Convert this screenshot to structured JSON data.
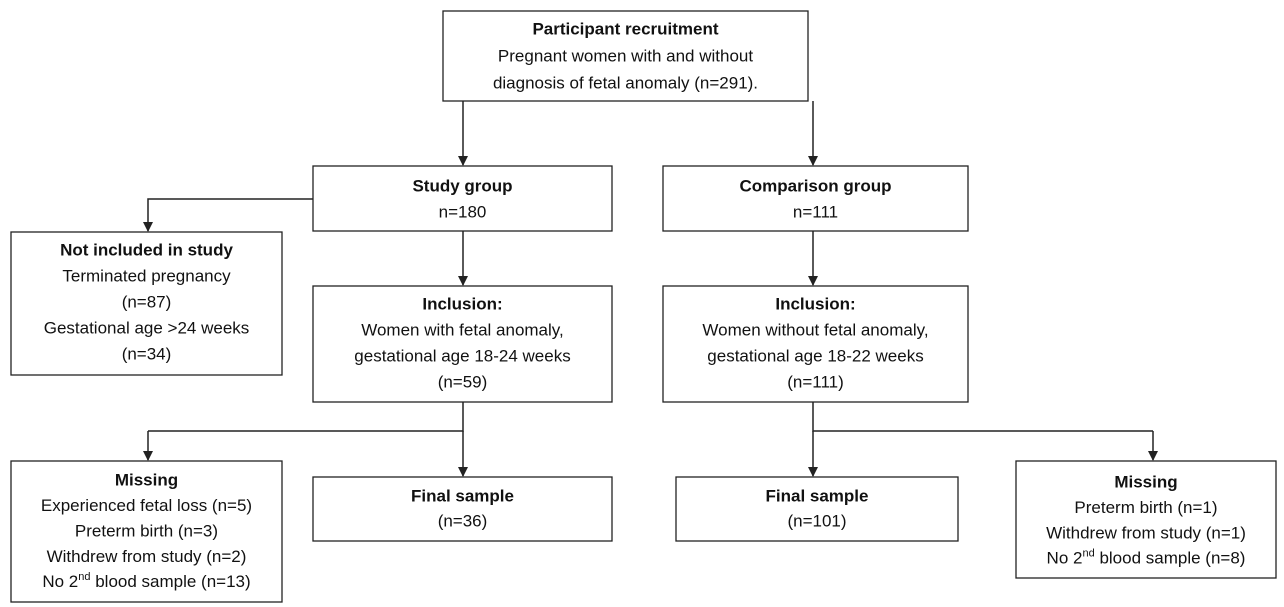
{
  "nodes": [
    {
      "title": "Participant recruitment",
      "lines": [
        "Pregnant women with and without",
        "diagnosis of fetal anomaly (n=291)."
      ]
    },
    {
      "title": "Study group",
      "lines": [
        "n=180"
      ]
    },
    {
      "title": "Comparison group",
      "lines": [
        "n=111"
      ]
    },
    {
      "title": "Not included in study",
      "lines": [
        "Terminated pregnancy",
        "(n=87)",
        "Gestational age >24 weeks",
        "(n=34)"
      ]
    },
    {
      "title": "Inclusion:",
      "lines": [
        "Women with fetal anomaly,",
        "gestational age 18-24 weeks",
        "(n=59)"
      ]
    },
    {
      "title": "Inclusion:",
      "lines": [
        "Women without fetal anomaly,",
        "gestational age 18-22 weeks",
        "(n=111)"
      ]
    },
    {
      "title": "Missing",
      "lines": [
        "Experienced fetal loss (n=5)",
        "Preterm birth (n=3)",
        "Withdrew from study (n=2)",
        [
          "No 2",
          "nd",
          " blood sample (n=13)"
        ]
      ]
    },
    {
      "title": "Final sample",
      "lines": [
        "(n=36)"
      ]
    },
    {
      "title": "Final sample",
      "lines": [
        "(n=101)"
      ]
    },
    {
      "title": "Missing",
      "lines": [
        "Preterm birth (n=1)",
        "Withdrew from study (n=1)",
        [
          "No 2",
          "nd",
          " blood sample (n=8)"
        ]
      ]
    }
  ]
}
